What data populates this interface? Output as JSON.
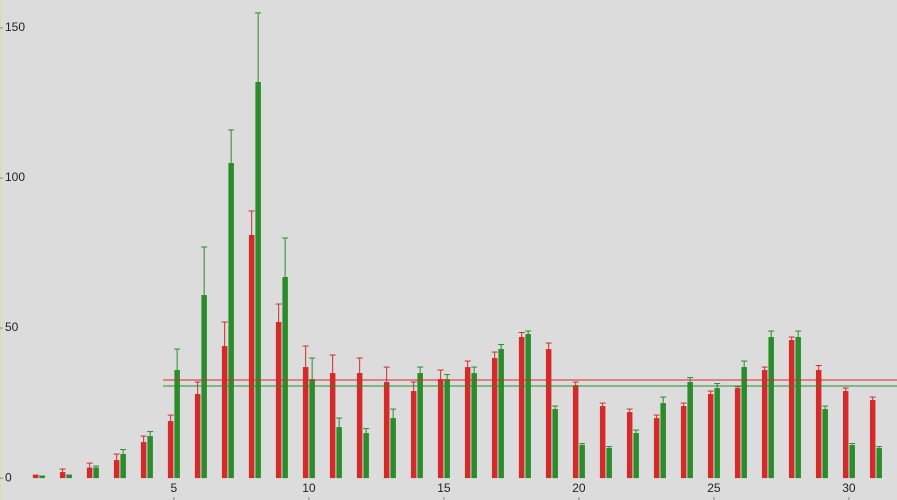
{
  "chart_data": {
    "type": "bar",
    "x": [
      0,
      1,
      2,
      3,
      4,
      5,
      6,
      7,
      8,
      9,
      10,
      11,
      12,
      13,
      14,
      15,
      16,
      17,
      18,
      19,
      20,
      21,
      22,
      23,
      24,
      25,
      26,
      27,
      28,
      29,
      30,
      31
    ],
    "series": [
      {
        "color": "#d42a2a",
        "values": [
          1,
          2,
          3.5,
          6,
          12,
          19,
          28,
          44,
          81,
          52,
          37,
          35,
          35,
          32,
          29,
          33,
          37,
          40,
          47,
          43,
          31,
          24,
          22,
          20,
          24,
          28,
          30,
          36,
          46,
          36,
          29,
          26
        ],
        "errors": [
          0,
          1,
          1.5,
          2,
          2,
          2,
          4,
          8,
          8,
          6,
          7,
          6,
          5,
          5,
          3,
          3,
          2,
          2,
          1.5,
          2,
          1,
          1,
          1,
          1,
          1,
          1,
          0.5,
          1,
          1,
          1.5,
          1,
          1
        ]
      },
      {
        "color": "#2a8c2a",
        "values": [
          0.7,
          1,
          3.5,
          8,
          14,
          36,
          61,
          105,
          132,
          67,
          33,
          17,
          15,
          20,
          35,
          33,
          35,
          43,
          48,
          23,
          11,
          10,
          15,
          25,
          32,
          30,
          37,
          47,
          47,
          23,
          11,
          10
        ],
        "errors": [
          0,
          0,
          0.5,
          1.5,
          1.5,
          7,
          16,
          11,
          23,
          13,
          7,
          3,
          1.5,
          3,
          2,
          1.5,
          2,
          1.5,
          1,
          1,
          0.5,
          0.5,
          1,
          2,
          1.5,
          1.5,
          2,
          2,
          2,
          1,
          0.5,
          0.5
        ]
      }
    ],
    "reference_lines": [
      {
        "value": 32.7,
        "color": "#d42a2a",
        "from_x": 4.6
      },
      {
        "value": 30.7,
        "color": "#2a8c2a",
        "from_x": 4.6
      }
    ],
    "xlim": [
      -1.44,
      31.78
    ],
    "xticks": [
      5,
      10,
      15,
      20,
      25,
      30
    ],
    "ylim": [
      -7.3,
      159.3
    ],
    "yticks": [
      0,
      50,
      100,
      150
    ]
  }
}
